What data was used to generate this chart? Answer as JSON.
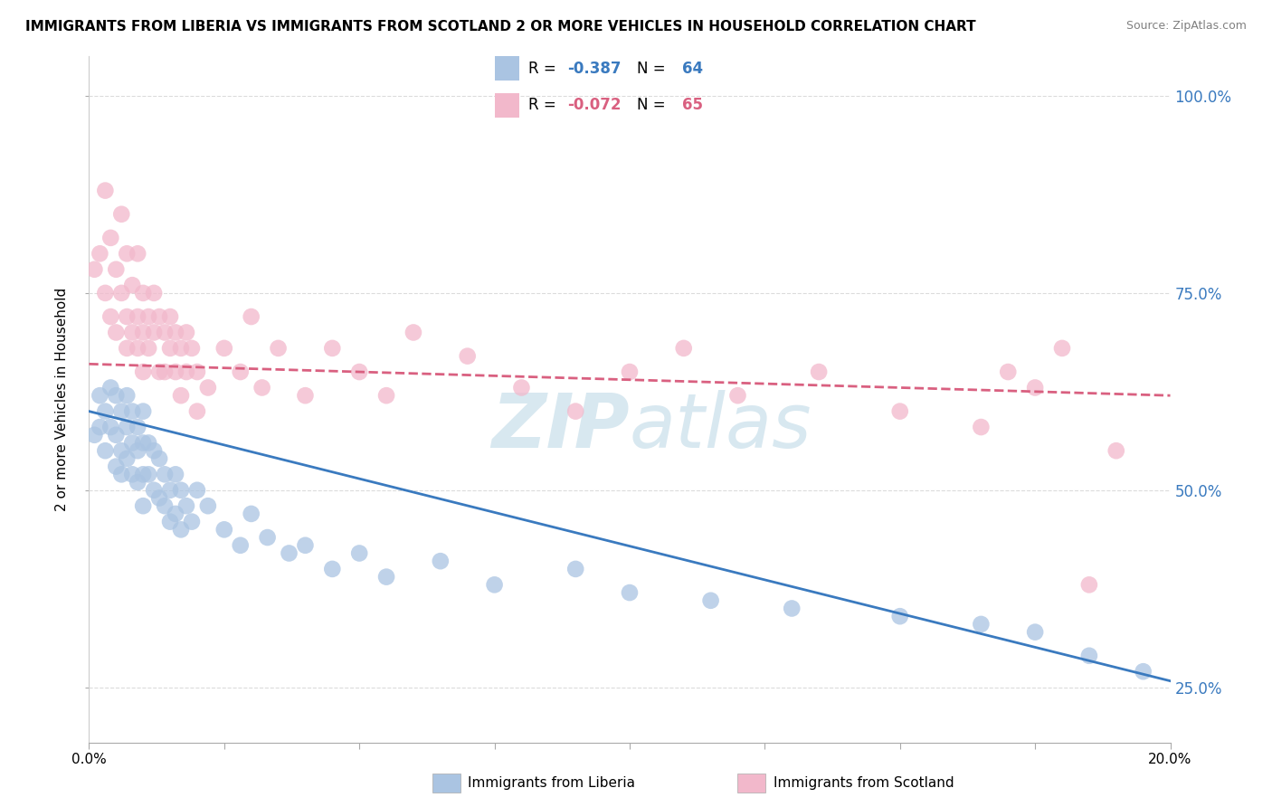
{
  "title": "IMMIGRANTS FROM LIBERIA VS IMMIGRANTS FROM SCOTLAND 2 OR MORE VEHICLES IN HOUSEHOLD CORRELATION CHART",
  "source": "Source: ZipAtlas.com",
  "ylabel": "2 or more Vehicles in Household",
  "xlim": [
    0.0,
    0.2
  ],
  "ylim": [
    0.18,
    1.05
  ],
  "legend_liberia": "Immigrants from Liberia",
  "legend_scotland": "Immigrants from Scotland",
  "r_liberia": -0.387,
  "n_liberia": 64,
  "r_scotland": -0.072,
  "n_scotland": 65,
  "color_liberia": "#aac4e2",
  "color_scotland": "#f2b8cb",
  "line_color_liberia": "#3a7abf",
  "line_color_scotland": "#d96080",
  "watermark_zip": "ZIP",
  "watermark_atlas": "atlas",
  "background_color": "#ffffff",
  "grid_color": "#cccccc",
  "liberia_x": [
    0.001,
    0.002,
    0.002,
    0.003,
    0.003,
    0.004,
    0.004,
    0.005,
    0.005,
    0.005,
    0.006,
    0.006,
    0.006,
    0.007,
    0.007,
    0.007,
    0.008,
    0.008,
    0.008,
    0.009,
    0.009,
    0.009,
    0.01,
    0.01,
    0.01,
    0.01,
    0.011,
    0.011,
    0.012,
    0.012,
    0.013,
    0.013,
    0.014,
    0.014,
    0.015,
    0.015,
    0.016,
    0.016,
    0.017,
    0.017,
    0.018,
    0.019,
    0.02,
    0.022,
    0.025,
    0.028,
    0.03,
    0.033,
    0.037,
    0.04,
    0.045,
    0.05,
    0.055,
    0.065,
    0.075,
    0.09,
    0.1,
    0.115,
    0.13,
    0.15,
    0.165,
    0.175,
    0.185,
    0.195
  ],
  "liberia_y": [
    0.57,
    0.62,
    0.58,
    0.6,
    0.55,
    0.63,
    0.58,
    0.62,
    0.57,
    0.53,
    0.6,
    0.55,
    0.52,
    0.62,
    0.58,
    0.54,
    0.6,
    0.56,
    0.52,
    0.58,
    0.55,
    0.51,
    0.6,
    0.56,
    0.52,
    0.48,
    0.56,
    0.52,
    0.55,
    0.5,
    0.54,
    0.49,
    0.52,
    0.48,
    0.5,
    0.46,
    0.52,
    0.47,
    0.5,
    0.45,
    0.48,
    0.46,
    0.5,
    0.48,
    0.45,
    0.43,
    0.47,
    0.44,
    0.42,
    0.43,
    0.4,
    0.42,
    0.39,
    0.41,
    0.38,
    0.4,
    0.37,
    0.36,
    0.35,
    0.34,
    0.33,
    0.32,
    0.29,
    0.27
  ],
  "scotland_x": [
    0.001,
    0.002,
    0.003,
    0.003,
    0.004,
    0.004,
    0.005,
    0.005,
    0.006,
    0.006,
    0.007,
    0.007,
    0.007,
    0.008,
    0.008,
    0.009,
    0.009,
    0.009,
    0.01,
    0.01,
    0.01,
    0.011,
    0.011,
    0.012,
    0.012,
    0.013,
    0.013,
    0.014,
    0.014,
    0.015,
    0.015,
    0.016,
    0.016,
    0.017,
    0.017,
    0.018,
    0.018,
    0.019,
    0.02,
    0.02,
    0.022,
    0.025,
    0.028,
    0.03,
    0.032,
    0.035,
    0.04,
    0.045,
    0.05,
    0.055,
    0.06,
    0.07,
    0.08,
    0.09,
    0.1,
    0.11,
    0.12,
    0.135,
    0.15,
    0.165,
    0.17,
    0.175,
    0.18,
    0.185,
    0.19
  ],
  "scotland_y": [
    0.78,
    0.8,
    0.75,
    0.88,
    0.82,
    0.72,
    0.78,
    0.7,
    0.85,
    0.75,
    0.8,
    0.72,
    0.68,
    0.76,
    0.7,
    0.8,
    0.72,
    0.68,
    0.75,
    0.7,
    0.65,
    0.72,
    0.68,
    0.75,
    0.7,
    0.72,
    0.65,
    0.7,
    0.65,
    0.72,
    0.68,
    0.7,
    0.65,
    0.68,
    0.62,
    0.7,
    0.65,
    0.68,
    0.65,
    0.6,
    0.63,
    0.68,
    0.65,
    0.72,
    0.63,
    0.68,
    0.62,
    0.68,
    0.65,
    0.62,
    0.7,
    0.67,
    0.63,
    0.6,
    0.65,
    0.68,
    0.62,
    0.65,
    0.6,
    0.58,
    0.65,
    0.63,
    0.68,
    0.38,
    0.55
  ],
  "liberia_line": [
    0.6,
    0.258
  ],
  "scotland_line": [
    0.66,
    0.62
  ]
}
